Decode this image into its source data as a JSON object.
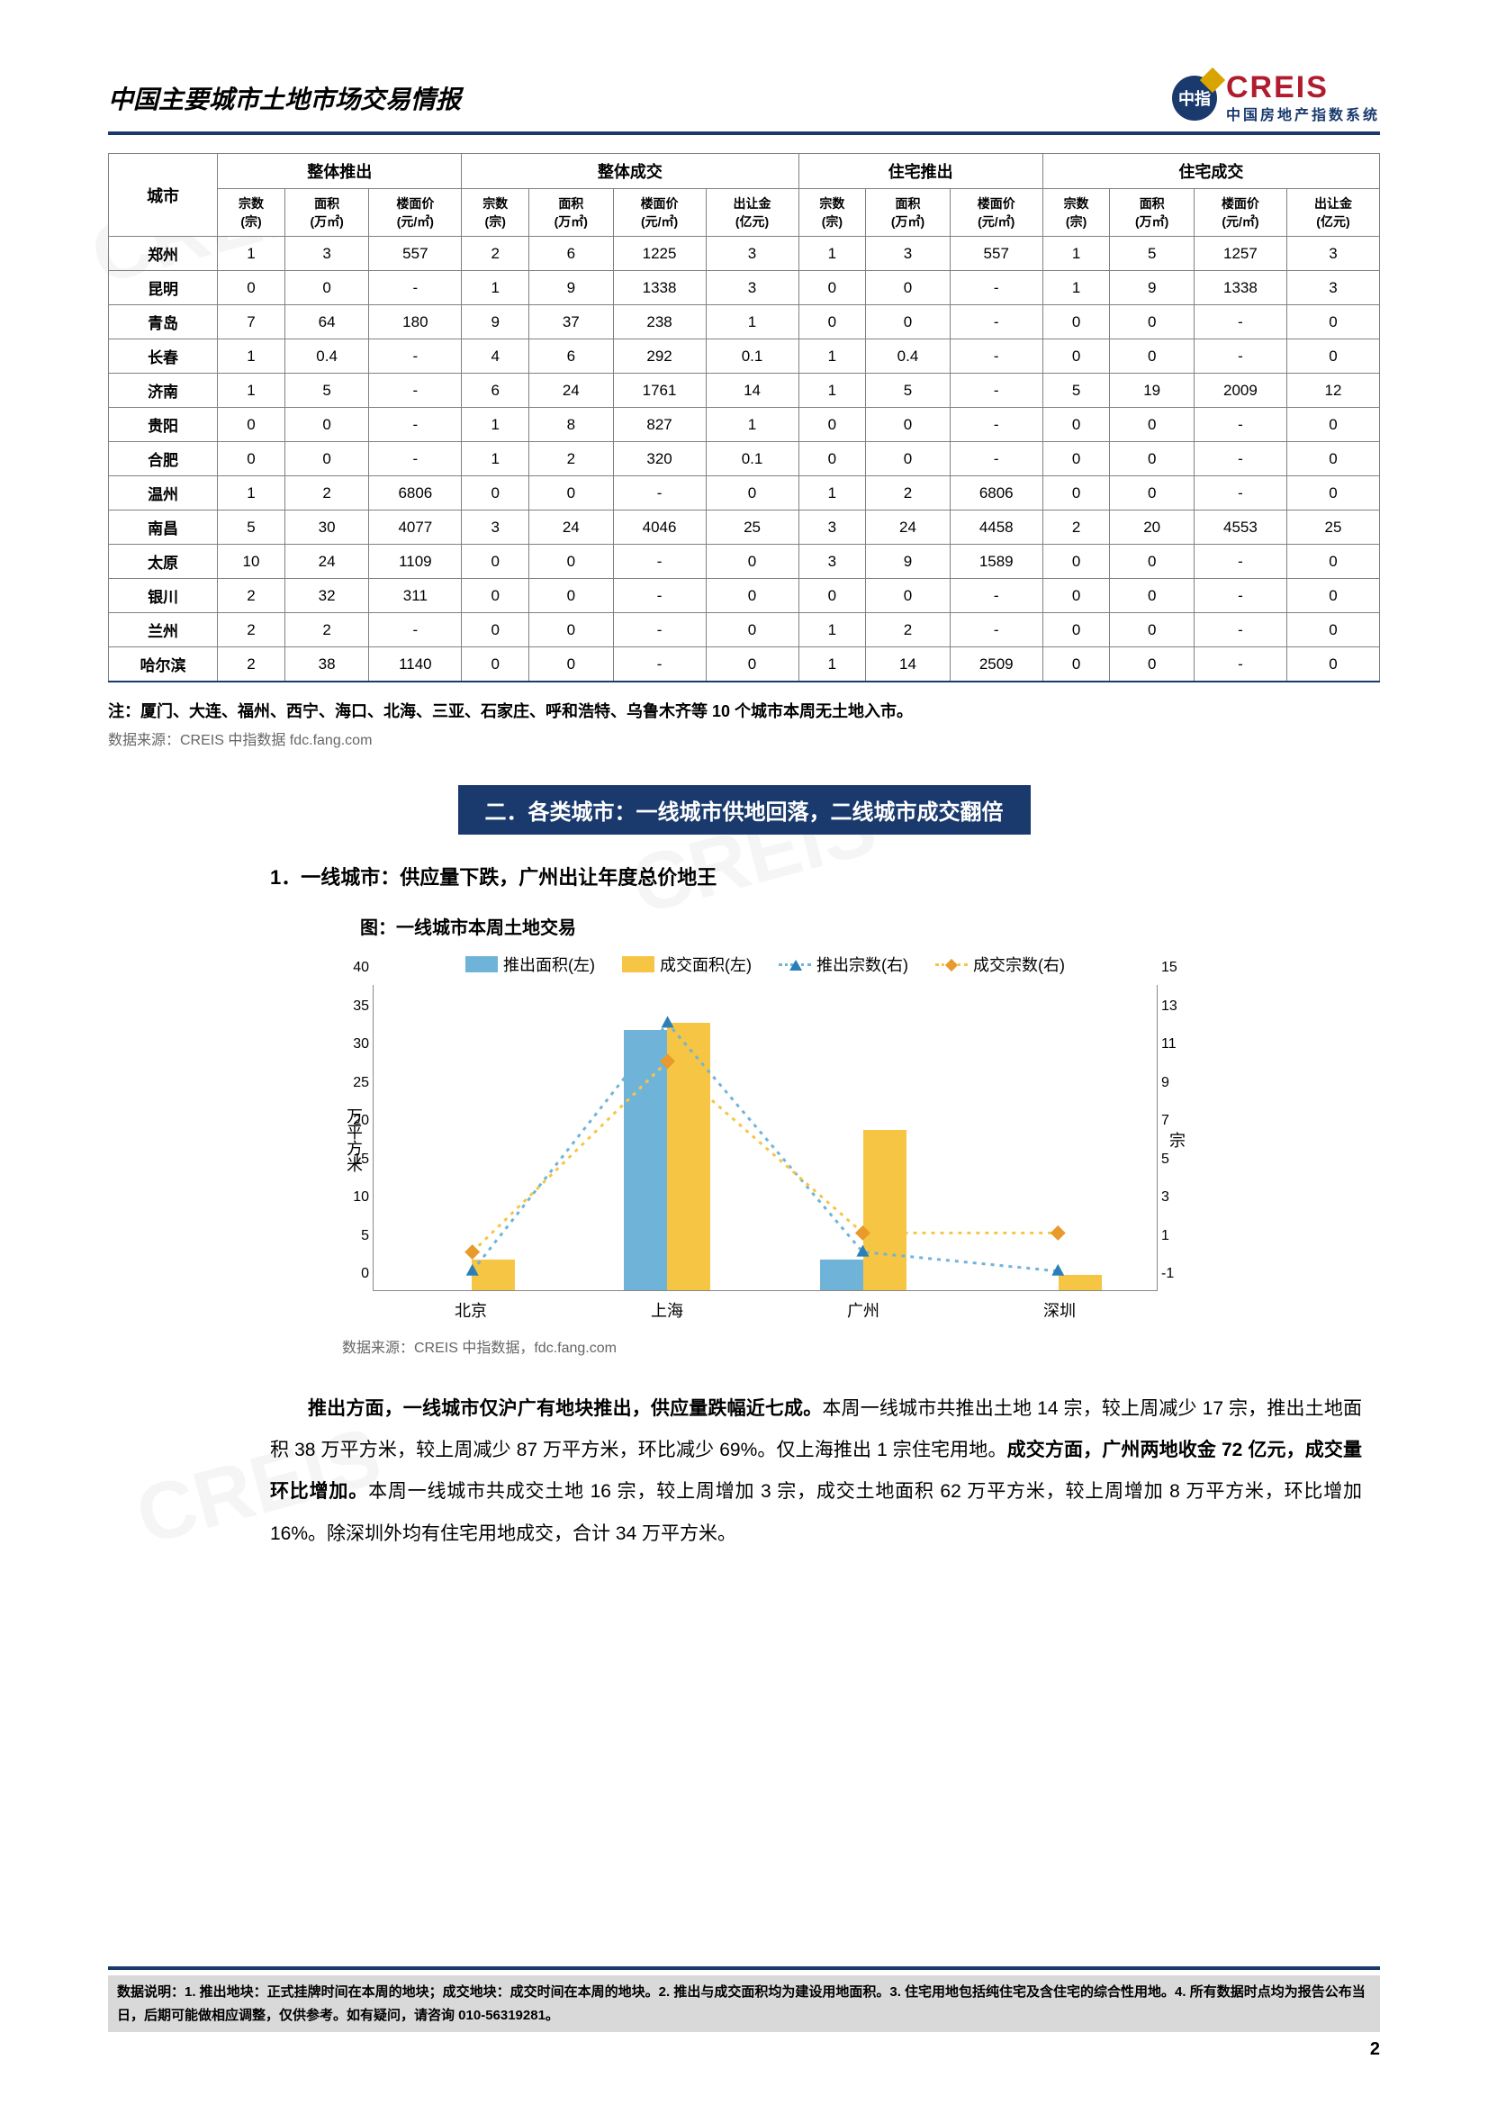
{
  "header": {
    "title": "中国主要城市土地市场交易情报",
    "logo_badge": "中指",
    "logo_main": "CREIS",
    "logo_sub": "中国房地产指数系统"
  },
  "table": {
    "city_header": "城市",
    "groups": [
      "整体推出",
      "整体成交",
      "住宅推出",
      "住宅成交"
    ],
    "sub_cols_3": [
      "宗数\n(宗)",
      "面积\n(万㎡)",
      "楼面价\n(元/㎡)"
    ],
    "sub_cols_4": [
      "宗数\n(宗)",
      "面积\n(万㎡)",
      "楼面价\n(元/㎡)",
      "出让金\n(亿元)"
    ],
    "rows": [
      {
        "city": "郑州",
        "c": [
          "1",
          "3",
          "557",
          "2",
          "6",
          "1225",
          "3",
          "1",
          "3",
          "557",
          "1",
          "5",
          "1257",
          "3"
        ]
      },
      {
        "city": "昆明",
        "c": [
          "0",
          "0",
          "-",
          "1",
          "9",
          "1338",
          "3",
          "0",
          "0",
          "-",
          "1",
          "9",
          "1338",
          "3"
        ]
      },
      {
        "city": "青岛",
        "c": [
          "7",
          "64",
          "180",
          "9",
          "37",
          "238",
          "1",
          "0",
          "0",
          "-",
          "0",
          "0",
          "-",
          "0"
        ]
      },
      {
        "city": "长春",
        "c": [
          "1",
          "0.4",
          "-",
          "4",
          "6",
          "292",
          "0.1",
          "1",
          "0.4",
          "-",
          "0",
          "0",
          "-",
          "0"
        ]
      },
      {
        "city": "济南",
        "c": [
          "1",
          "5",
          "-",
          "6",
          "24",
          "1761",
          "14",
          "1",
          "5",
          "-",
          "5",
          "19",
          "2009",
          "12"
        ]
      },
      {
        "city": "贵阳",
        "c": [
          "0",
          "0",
          "-",
          "1",
          "8",
          "827",
          "1",
          "0",
          "0",
          "-",
          "0",
          "0",
          "-",
          "0"
        ]
      },
      {
        "city": "合肥",
        "c": [
          "0",
          "0",
          "-",
          "1",
          "2",
          "320",
          "0.1",
          "0",
          "0",
          "-",
          "0",
          "0",
          "-",
          "0"
        ]
      },
      {
        "city": "温州",
        "c": [
          "1",
          "2",
          "6806",
          "0",
          "0",
          "-",
          "0",
          "1",
          "2",
          "6806",
          "0",
          "0",
          "-",
          "0"
        ]
      },
      {
        "city": "南昌",
        "c": [
          "5",
          "30",
          "4077",
          "3",
          "24",
          "4046",
          "25",
          "3",
          "24",
          "4458",
          "2",
          "20",
          "4553",
          "25"
        ]
      },
      {
        "city": "太原",
        "c": [
          "10",
          "24",
          "1109",
          "0",
          "0",
          "-",
          "0",
          "3",
          "9",
          "1589",
          "0",
          "0",
          "-",
          "0"
        ]
      },
      {
        "city": "银川",
        "c": [
          "2",
          "32",
          "311",
          "0",
          "0",
          "-",
          "0",
          "0",
          "0",
          "-",
          "0",
          "0",
          "-",
          "0"
        ]
      },
      {
        "city": "兰州",
        "c": [
          "2",
          "2",
          "-",
          "0",
          "0",
          "-",
          "0",
          "1",
          "2",
          "-",
          "0",
          "0",
          "-",
          "0"
        ]
      },
      {
        "city": "哈尔滨",
        "c": [
          "2",
          "38",
          "1140",
          "0",
          "0",
          "-",
          "0",
          "1",
          "14",
          "2509",
          "0",
          "0",
          "-",
          "0"
        ]
      }
    ]
  },
  "note": "注：厦门、大连、福州、西宁、海口、北海、三亚、石家庄、呼和浩特、乌鲁木齐等 10 个城市本周无土地入市。",
  "source": "数据来源：CREIS 中指数据 fdc.fang.com",
  "section_banner": "二．各类城市：一线城市供地回落，二线城市成交翻倍",
  "subsection": "1．一线城市：供应量下跌，广州出让年度总价地王",
  "chart": {
    "title": "图：一线城市本周土地交易",
    "legend": {
      "bar1": "推出面积(左)",
      "bar2": "成交面积(左)",
      "line1": "推出宗数(右)",
      "line2": "成交宗数(右)"
    },
    "colors": {
      "bar1": "#6fb4d8",
      "bar2": "#f6c543",
      "line1": "#6fb4d8",
      "marker1": "#2a7fb8",
      "line2": "#f6c543",
      "marker2": "#e89a2c",
      "grid": "#cccccc"
    },
    "y_left": {
      "label": "万平方米",
      "min": 0,
      "max": 40,
      "ticks": [
        0,
        5,
        10,
        15,
        20,
        25,
        30,
        35,
        40
      ]
    },
    "y_right": {
      "label": "宗",
      "min": -1,
      "max": 15,
      "ticks": [
        -1,
        1,
        3,
        5,
        7,
        9,
        11,
        13,
        15
      ]
    },
    "categories": [
      "北京",
      "上海",
      "广州",
      "深圳"
    ],
    "bar1_values": [
      0,
      34,
      4,
      0
    ],
    "bar2_values": [
      4,
      35,
      21,
      2
    ],
    "line1_values": [
      0,
      13,
      1,
      0
    ],
    "line2_values": [
      1,
      11,
      2,
      2
    ],
    "source": "数据来源：CREIS 中指数据，fdc.fang.com"
  },
  "body": {
    "p1a": "推出方面，一线城市仅沪广有地块推出，供应量跌幅近七成。",
    "p1b": "本周一线城市共推出土地 14 宗，较上周减少 17 宗，推出土地面积 38 万平方米，较上周减少 87 万平方米，环比减少 69%。仅上海推出 1 宗住宅用地。",
    "p1c": "成交方面，广州两地收金 72 亿元，成交量环比增加。",
    "p1d": "本周一线城市共成交土地 16 宗，较上周增加 3 宗，成交土地面积 62 万平方米，较上周增加 8 万平方米，环比增加 16%。除深圳外均有住宅用地成交，合计 34 万平方米。"
  },
  "footer": {
    "text": "数据说明：1. 推出地块：正式挂牌时间在本周的地块；成交地块：成交时间在本周的地块。2. 推出与成交面积均为建设用地面积。3. 住宅用地包括纯住宅及含住宅的综合性用地。4. 所有数据时点均为报告公布当日，后期可能做相应调整，仅供参考。如有疑问，请咨询 010-56319281。",
    "page": "2"
  }
}
